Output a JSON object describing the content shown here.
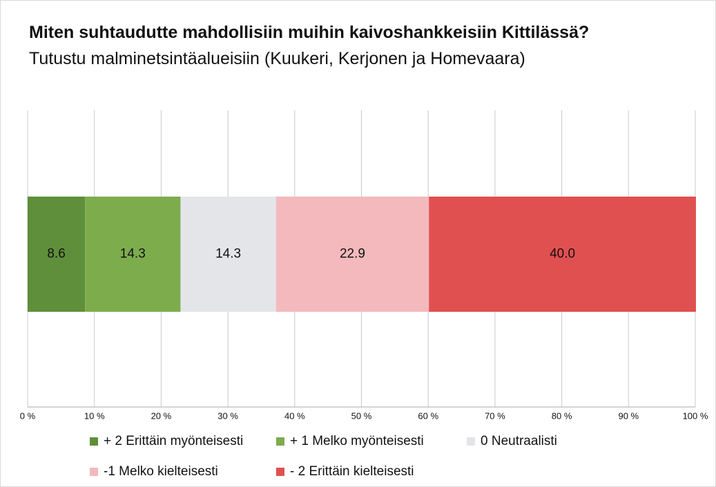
{
  "chart_data": {
    "type": "bar",
    "orientation": "horizontal",
    "stacked": true,
    "title": "Miten suhtaudutte mahdollisiin muihin kaivoshankkeisiin Kittilässä?",
    "subtitle": "Tutustu malminetsintäalueisiin (Kuukeri, Kerjonen ja Homevaara)",
    "categories": [
      null
    ],
    "series": [
      {
        "name": "+ 2 Erittäin myönteisesti",
        "color": "#5f8f3a",
        "values": [
          8.6
        ]
      },
      {
        "name": "+ 1 Melko myönteisesti",
        "color": "#7dac4d",
        "values": [
          14.3
        ]
      },
      {
        "name": "0 Neutraalisti",
        "color": "#e3e5e9",
        "values": [
          14.3
        ]
      },
      {
        "name": "-1 Melko kielteisesti",
        "color": "#f3b9bc",
        "values": [
          22.9
        ]
      },
      {
        "name": "- 2 Erittäin kielteisesti",
        "color": "#e05050",
        "values": [
          40
        ],
        "value_labels": [
          "40.0"
        ]
      }
    ],
    "xlim": [
      0,
      100
    ],
    "xticks": [
      {
        "value": 0,
        "label": "0 %"
      },
      {
        "value": 10,
        "label": "10 %"
      },
      {
        "value": 20,
        "label": "20 %"
      },
      {
        "value": 30,
        "label": "30 %"
      },
      {
        "value": 40,
        "label": "40 %"
      },
      {
        "value": 50,
        "label": "50 %"
      },
      {
        "value": 60,
        "label": "60 %"
      },
      {
        "value": 70,
        "label": "70 %"
      },
      {
        "value": 80,
        "label": "80 %"
      },
      {
        "value": 90,
        "label": "90 %"
      },
      {
        "value": 100,
        "label": "100 %"
      }
    ],
    "grid": true
  }
}
